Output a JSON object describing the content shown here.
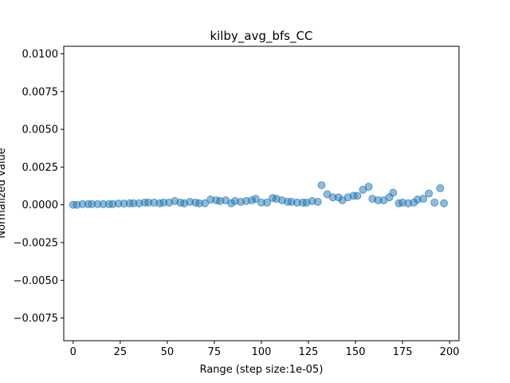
{
  "chart_data": {
    "type": "scatter",
    "title": "kilby_avg_bfs_CC",
    "xlabel": "Range (step size:1e-05)",
    "ylabel": "Normalized value",
    "xlim": [
      -5,
      205
    ],
    "ylim": [
      -0.009,
      0.0105
    ],
    "xticks": [
      0,
      25,
      50,
      75,
      100,
      125,
      150,
      175,
      200
    ],
    "xtick_labels": [
      "0",
      "25",
      "50",
      "75",
      "100",
      "125",
      "150",
      "175",
      "200"
    ],
    "yticks": [
      -0.0075,
      -0.005,
      -0.0025,
      0.0,
      0.0025,
      0.005,
      0.0075,
      0.01
    ],
    "ytick_labels": [
      "−0.0075",
      "−0.0050",
      "−0.0025",
      "0.0000",
      "0.0025",
      "0.0050",
      "0.0075",
      "0.0100"
    ],
    "marker_color": "#1f77b4",
    "marker_alpha": 0.5,
    "grid": false,
    "series": [
      {
        "name": "kilby_avg_bfs_CC",
        "x": [
          0,
          2,
          5,
          8,
          10,
          13,
          16,
          19,
          21,
          24,
          27,
          30,
          32,
          35,
          38,
          40,
          43,
          46,
          48,
          51,
          54,
          57,
          59,
          62,
          65,
          67,
          70,
          73,
          76,
          78,
          81,
          84,
          86,
          89,
          92,
          95,
          97,
          100,
          103,
          106,
          108,
          111,
          114,
          116,
          119,
          122,
          124,
          127,
          130,
          132,
          135,
          138,
          141,
          143,
          146,
          149,
          151,
          154,
          157,
          159,
          162,
          165,
          168,
          170,
          173,
          175,
          178,
          181,
          183,
          186,
          189,
          192,
          195,
          197
        ],
        "y": [
          0.0,
          0.0,
          5e-05,
          5e-05,
          5e-05,
          5e-05,
          5e-05,
          5e-05,
          5e-05,
          8e-05,
          8e-05,
          0.0001,
          0.0001,
          0.0001,
          0.00015,
          0.00015,
          0.00015,
          0.0001,
          0.00015,
          0.00015,
          0.00025,
          0.00015,
          0.0001,
          0.0002,
          0.00015,
          0.0001,
          0.0001,
          0.00035,
          0.0003,
          0.00025,
          0.0003,
          0.0001,
          0.00025,
          0.0002,
          0.00025,
          0.0003,
          0.0004,
          0.00015,
          0.00015,
          0.00045,
          0.0004,
          0.0003,
          0.0002,
          0.0002,
          0.00015,
          0.00015,
          0.00015,
          0.00025,
          0.0002,
          0.0013,
          0.0007,
          0.0005,
          0.0005,
          0.0003,
          0.0005,
          0.0006,
          0.0006,
          0.001,
          0.0012,
          0.0004,
          0.0003,
          0.0003,
          0.0005,
          0.0008,
          0.0001,
          0.00015,
          0.0001,
          0.00015,
          0.00035,
          0.0004,
          0.00075,
          0.00015,
          0.0011,
          0.0001
        ]
      }
    ]
  }
}
